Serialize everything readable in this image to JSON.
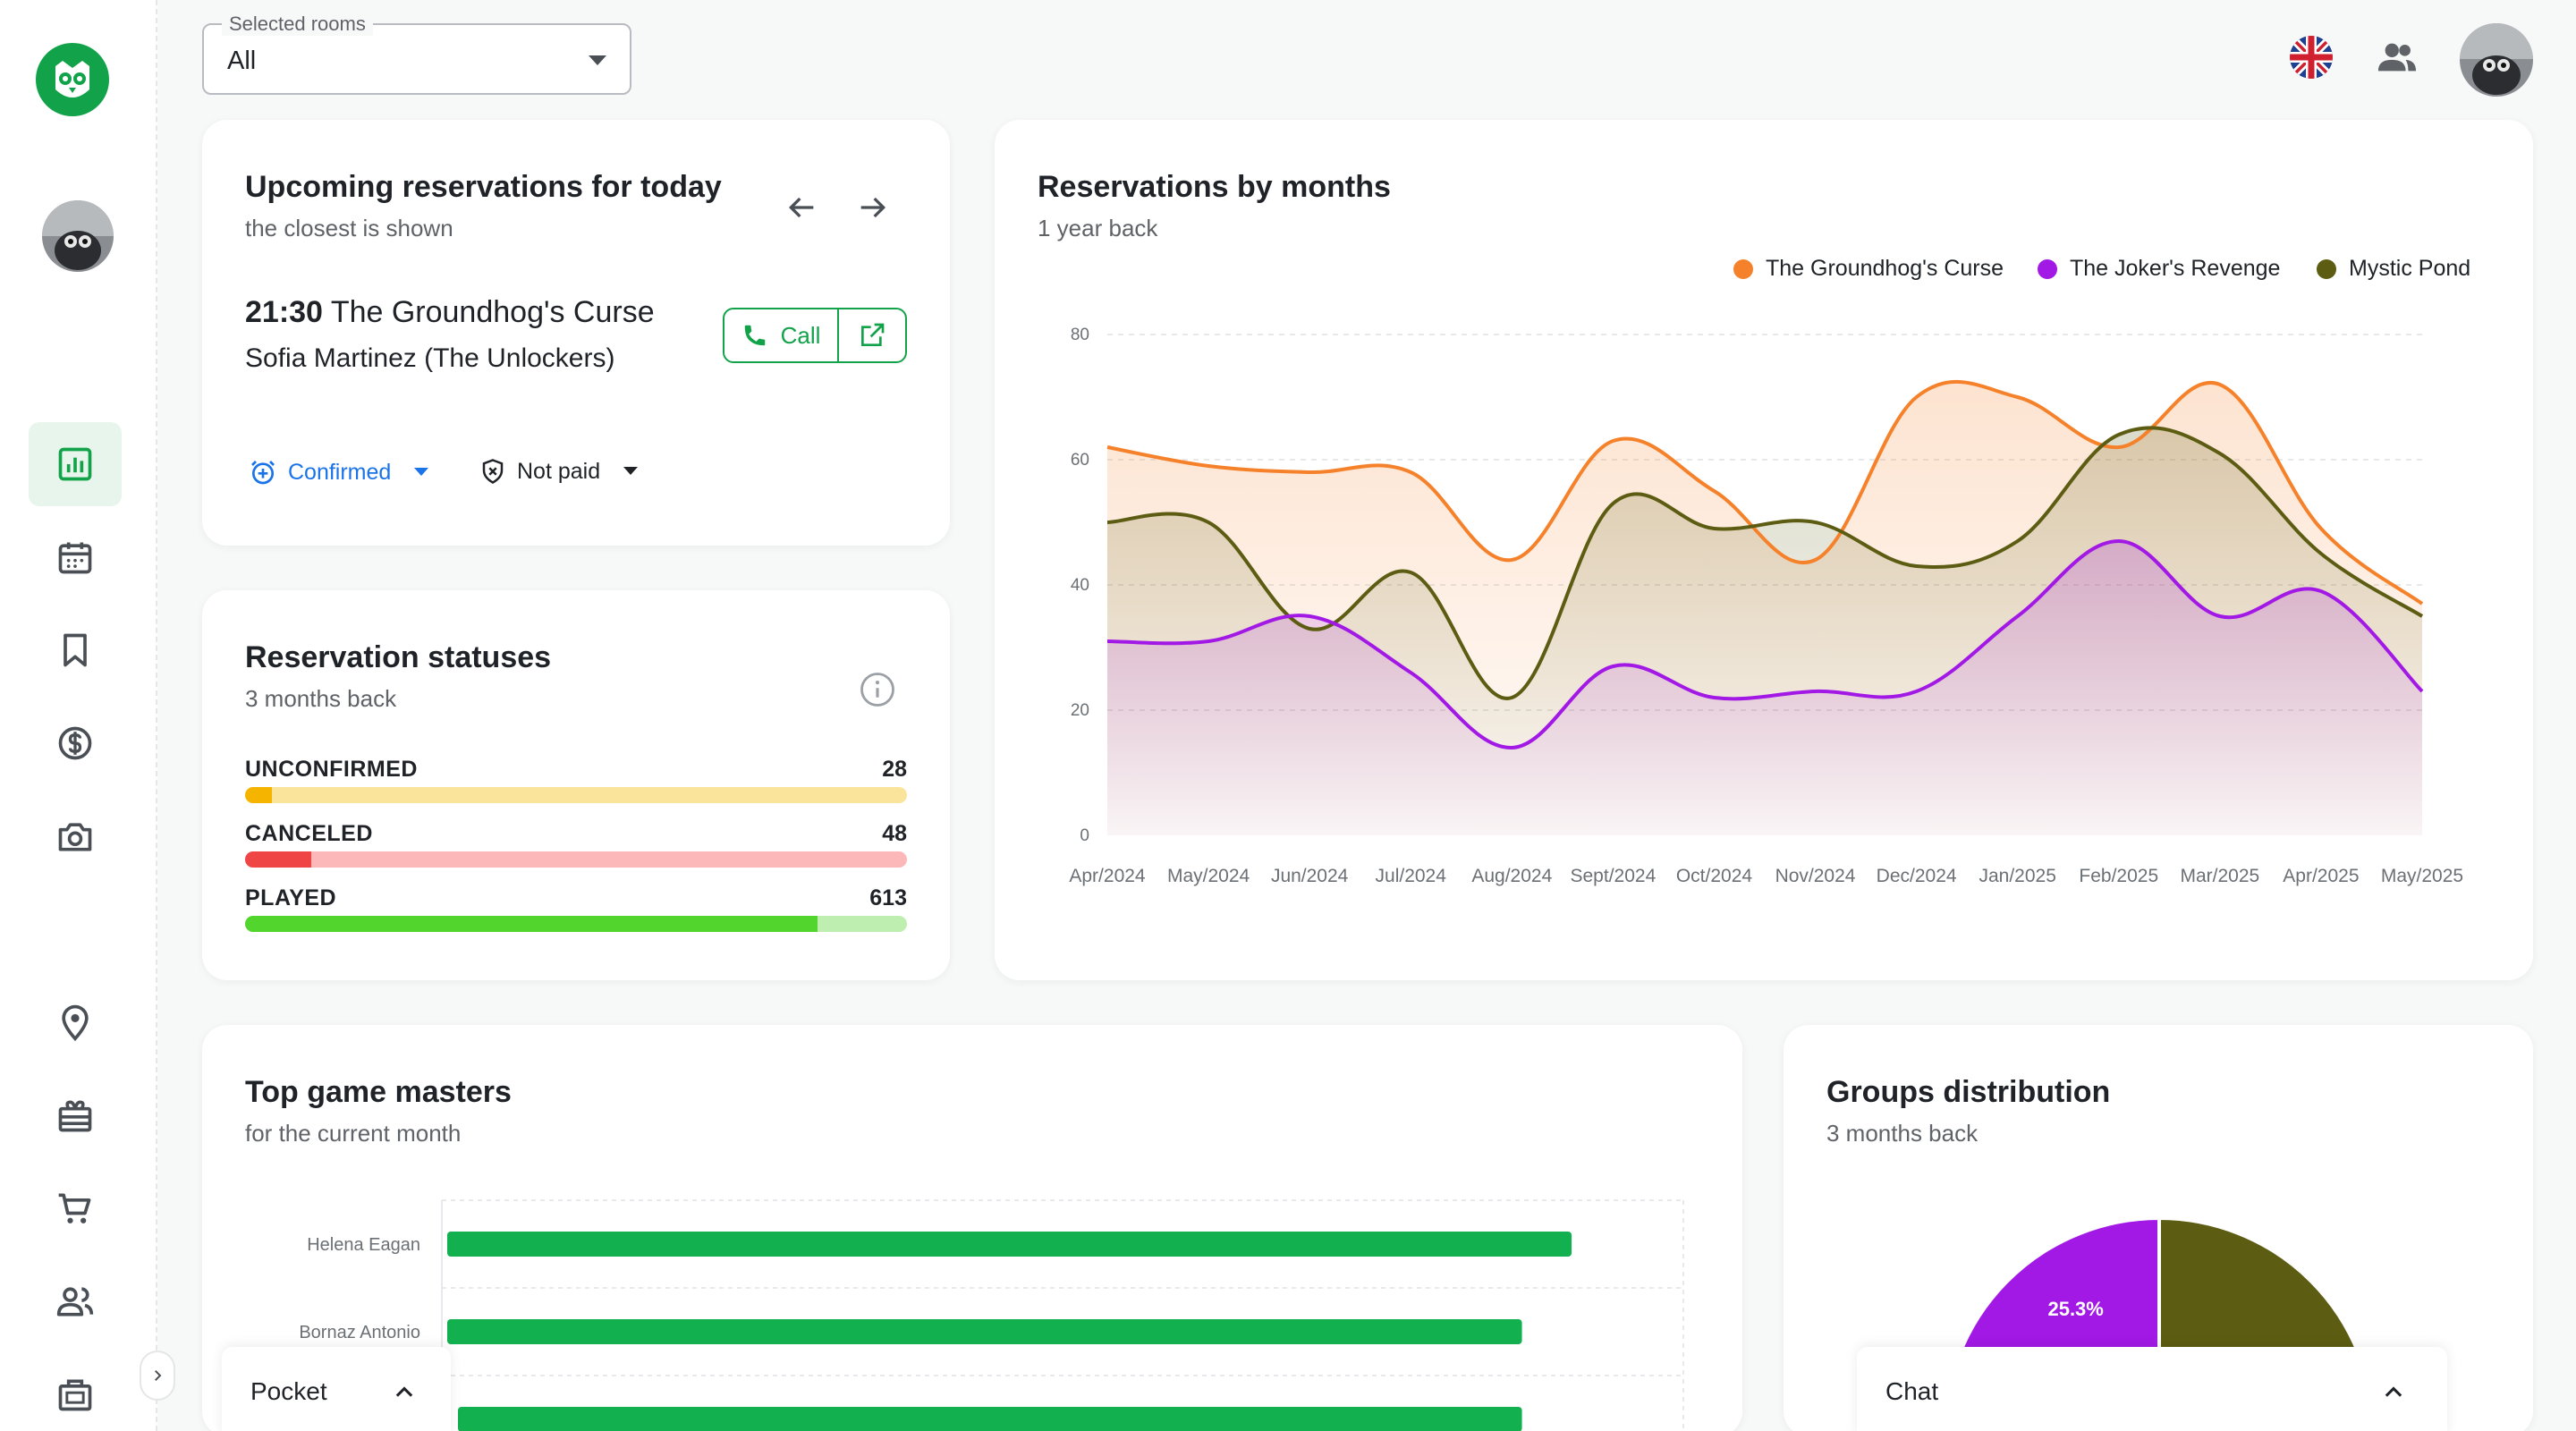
{
  "top_bar": {
    "room_select_legend": "Selected rooms",
    "room_select_value": "All",
    "icons": [
      "uk-flag-icon",
      "users-icon",
      "user-avatar"
    ]
  },
  "sidebar": {
    "items": [
      {
        "name": "dashboard",
        "icon": "bar-chart-icon",
        "active": true
      },
      {
        "name": "calendar",
        "icon": "calendar-icon",
        "active": false
      },
      {
        "name": "bookmarks",
        "icon": "bookmark-icon",
        "active": false
      },
      {
        "name": "payments",
        "icon": "dollar-icon",
        "active": false
      },
      {
        "name": "photos",
        "icon": "camera-icon",
        "active": false
      },
      {
        "name": "locations",
        "icon": "location-pin-icon",
        "active": false
      },
      {
        "name": "vouchers",
        "icon": "gift-icon",
        "active": false
      },
      {
        "name": "shop",
        "icon": "cart-icon",
        "active": false
      },
      {
        "name": "users",
        "icon": "users-icon",
        "active": false
      },
      {
        "name": "inventory",
        "icon": "box-icon",
        "active": false
      }
    ]
  },
  "upcoming": {
    "title": "Upcoming reservations for today",
    "subtitle": "the closest is shown",
    "time": "21:30",
    "room": "The Groundhog's Curse",
    "person": "Sofia Martinez (The Unlockers)",
    "call_label": "Call",
    "status_label": "Confirmed",
    "payment_label": "Not paid"
  },
  "statuses": {
    "title": "Reservation statuses",
    "subtitle": "3 months back",
    "items": [
      {
        "label": "UNCONFIRMED",
        "value": "28",
        "fraction": 0.04,
        "fill": "#f5b400",
        "track": "#fae39a"
      },
      {
        "label": "CANCELED",
        "value": "48",
        "fraction": 0.1,
        "fill": "#f04545",
        "track": "#fcb8b8"
      },
      {
        "label": "PLAYED",
        "value": "613",
        "fraction": 0.865,
        "fill": "#52d62e",
        "track": "#bfeeb1"
      }
    ]
  },
  "reservations_chart": {
    "title": "Reservations by months",
    "subtitle": "1 year back"
  },
  "chart_data": [
    {
      "type": "area",
      "title": "Reservations by months",
      "subtitle": "1 year back",
      "x": [
        "Apr/2024",
        "May/2024",
        "Jun/2024",
        "Jul/2024",
        "Aug/2024",
        "Sept/2024",
        "Oct/2024",
        "Nov/2024",
        "Dec/2024",
        "Jan/2025",
        "Feb/2025",
        "Mar/2025",
        "Apr/2025",
        "May/2025"
      ],
      "yticks": [
        "0",
        "20",
        "40",
        "60",
        "80"
      ],
      "ylim": [
        0,
        80
      ],
      "grid": true,
      "legend": "top-right",
      "series": [
        {
          "name": "The Groundhog's Curse",
          "color": "#f5822b",
          "values": [
            62,
            59,
            58,
            58,
            44,
            63,
            55,
            44,
            70,
            70,
            62,
            72,
            49,
            37
          ]
        },
        {
          "name": "The Joker's Revenge",
          "color": "#a219e6",
          "values": [
            31,
            31,
            35,
            26,
            14,
            27,
            22,
            23,
            23,
            35,
            47,
            35,
            39,
            23
          ]
        },
        {
          "name": "Mystic Pond",
          "color": "#5c5c12",
          "values": [
            50,
            50,
            33,
            42,
            22,
            53,
            49,
            50,
            43,
            47,
            64,
            61,
            45,
            35
          ]
        }
      ]
    },
    {
      "type": "bar",
      "title": "Top game masters",
      "subtitle": "for the current month",
      "categories": [
        "Helena Eagan",
        "Bornaz Antonio",
        ""
      ],
      "values": [
        91,
        87,
        87
      ],
      "xlim": [
        0,
        100
      ]
    },
    {
      "type": "pie",
      "title": "Groups distribution",
      "subtitle": "3 months back",
      "slices": [
        {
          "label": "25.3%",
          "value": 25.3,
          "color": "#a219e6"
        },
        {
          "label": "",
          "value": 25,
          "color": "#5c5c12"
        }
      ]
    }
  ],
  "game_masters": {
    "title": "Top game masters",
    "subtitle": "for the current month"
  },
  "groups": {
    "title": "Groups distribution",
    "subtitle": "3 months back"
  },
  "docks": {
    "pocket_label": "Pocket",
    "chat_label": "Chat"
  },
  "colors": {
    "brand_green": "#12a34a",
    "confirmed_blue": "#1a73e8"
  }
}
